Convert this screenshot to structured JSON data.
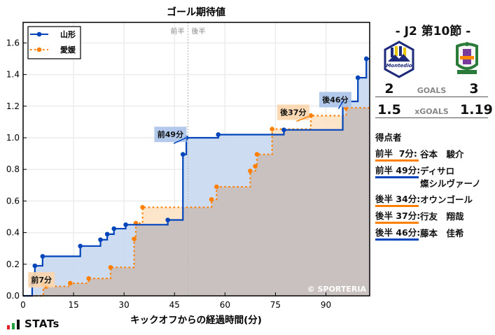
{
  "chart_data": {
    "type": "line",
    "step": true,
    "title": "ゴール期待値",
    "xlabel": "キックオフからの経過時間(分)",
    "ylabel": "",
    "xlim": [
      0,
      103
    ],
    "ylim": [
      0,
      1.73
    ],
    "xticks": [
      0,
      15,
      30,
      45,
      60,
      75,
      90
    ],
    "yticks": [
      0.0,
      0.2,
      0.4,
      0.6,
      0.8,
      1.0,
      1.2,
      1.4,
      1.6
    ],
    "ytick_labels": [
      "0.0",
      "0.2",
      "0.4",
      "0.6",
      "0.8",
      "1.0",
      "1.2",
      "1.4",
      "1.6"
    ],
    "grid": true,
    "legend_position": "upper left",
    "half_divider": {
      "x": 49,
      "left_label": "前半",
      "right_label": "後半"
    },
    "watermark": "© SPORTERIA",
    "series": [
      {
        "name": "山形",
        "color": "#0044bb",
        "fill": "#c9d8f0",
        "style": "solid",
        "x": [
          2.7,
          3.5,
          5.8,
          17,
          23,
          25,
          27,
          30.5,
          43,
          47.5,
          48.5,
          58,
          77.5,
          95,
          99.5,
          102
        ],
        "values": [
          0.075,
          0.19,
          0.25,
          0.315,
          0.355,
          0.39,
          0.425,
          0.45,
          0.48,
          0.895,
          1.0,
          1.02,
          1.05,
          1.23,
          1.38,
          1.5
        ]
      },
      {
        "name": "愛媛",
        "color": "#ff8000",
        "fill": "#fde2c4",
        "style": "dotted",
        "x": [
          6,
          7,
          14,
          19.5,
          26,
          33,
          33.5,
          35.5,
          56,
          57.5,
          67.5,
          69,
          69.5,
          74,
          85.5,
          96
        ],
        "values": [
          0.075,
          0.06,
          0.08,
          0.11,
          0.18,
          0.36,
          0.46,
          0.56,
          0.61,
          0.69,
          0.79,
          0.82,
          0.895,
          1.055,
          1.14,
          1.19
        ]
      }
    ],
    "annotations": [
      {
        "label": "前7分",
        "x": 7,
        "y": 0.06,
        "box_x": 1.5,
        "box_y": 0.15,
        "color": "#fbd5ac"
      },
      {
        "label": "前49分",
        "x": 48.5,
        "y": 1.0,
        "box_x": 39,
        "box_y": 1.07,
        "color": "#aac3ea"
      },
      {
        "label": "後37分",
        "x": 85.5,
        "y": 1.14,
        "box_x": 75.5,
        "box_y": 1.21,
        "color": "#fbd5ac"
      },
      {
        "label": "後46分",
        "x": 95,
        "y": 1.23,
        "box_x": 88,
        "box_y": 1.29,
        "color": "#aac3ea"
      }
    ]
  },
  "match": {
    "title": "- J2 第10節 -",
    "home": {
      "name": "山形",
      "logo": "montedio-yamagata-crest",
      "goals": "2",
      "xgoals": "1.5"
    },
    "away": {
      "name": "愛媛",
      "logo": "ehime-fc-crest",
      "goals": "3",
      "xgoals": "1.19"
    },
    "goals_label": "GOALS",
    "xgoals_label": "xGOALS"
  },
  "scorers": {
    "title": "得点者",
    "items": [
      {
        "time": "前半  7分:",
        "name": "谷本　駿介",
        "color": "#ff8000"
      },
      {
        "time": "前半 49分:",
        "name": "ディサロ\n燦シルヴァーノ",
        "color": "#0044bb"
      },
      {
        "time": "後半 34分:",
        "name": "オウンゴール",
        "color": "#ff8000"
      },
      {
        "time": "後半 37分:",
        "name": "行友　翔哉",
        "color": "#ff8000"
      },
      {
        "time": "後半 46分:",
        "name": "藤本　佳希",
        "color": "#0044bb"
      }
    ]
  },
  "branding": {
    "stats_logo": "STATs"
  }
}
